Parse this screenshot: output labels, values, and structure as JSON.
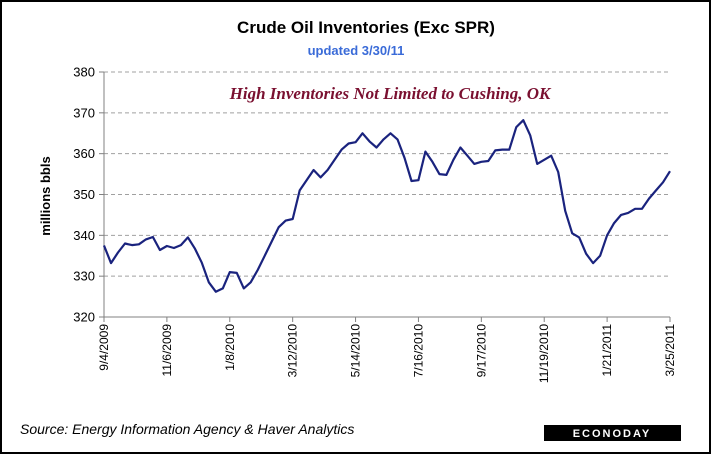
{
  "chart_data": {
    "type": "line",
    "title": "Crude Oil Inventories (Exc SPR)",
    "subtitle": "updated 3/30/11",
    "annotation": "High Inventories Not Limited to Cushing, OK",
    "ylabel": "millions bbls",
    "ylim": [
      320,
      380
    ],
    "yticks": [
      320,
      330,
      340,
      350,
      360,
      370,
      380
    ],
    "grid": "horizontal-dashed",
    "xtick_labels": [
      "9/4/2009",
      "11/6/2009",
      "1/8/2010",
      "3/12/2010",
      "5/14/2010",
      "7/16/2010",
      "9/17/2010",
      "11/19/2010",
      "1/21/2011",
      "3/25/2011"
    ],
    "line_color": "#1a237e",
    "series": [
      {
        "values": [
          337.5,
          333.2,
          335.8,
          338.0,
          337.6,
          337.8,
          339.0,
          339.6,
          336.4,
          337.4,
          336.9,
          337.6,
          339.5,
          336.8,
          333.3,
          328.5,
          326.2,
          327.0,
          331.0,
          330.8,
          327.0,
          328.5,
          331.5,
          335.0,
          338.5,
          342.0,
          343.6,
          344.0,
          351.0,
          353.5,
          356.0,
          354.2,
          356.0,
          358.5,
          361.0,
          362.5,
          362.8,
          365.0,
          363.0,
          361.5,
          363.5,
          365.0,
          363.5,
          359.0,
          353.3,
          353.5,
          360.5,
          358.0,
          355.0,
          354.8,
          358.5,
          361.5,
          359.5,
          357.5,
          358.0,
          358.2,
          360.8,
          361.0,
          361.0,
          366.5,
          368.2,
          364.5,
          357.5,
          358.5,
          359.5,
          355.5,
          346.0,
          340.5,
          339.5,
          335.5,
          333.2,
          335.0,
          340.0,
          343.0,
          345.0,
          345.5,
          346.5,
          346.5,
          349.0,
          351.0,
          353.0,
          355.7
        ]
      }
    ]
  },
  "source": "Source: Energy Information Agency & Haver Analytics",
  "logo": "ECONODAY"
}
